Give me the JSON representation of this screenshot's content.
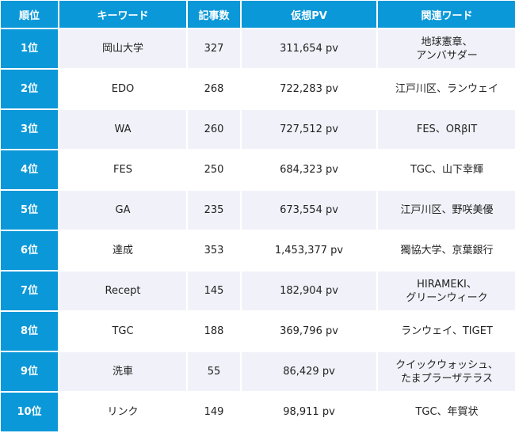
{
  "header": {
    "rank": "順位",
    "keyword": "キーワード",
    "count": "記事数",
    "pv": "仮想PV",
    "related": "関連ワード"
  },
  "colors": {
    "accent": "#0b98d8",
    "row_alt": "#f1f2f9"
  },
  "rows": [
    {
      "rank": "1位",
      "keyword": "岡山大学",
      "count": "327",
      "pv": "311,654 pv",
      "related": "地球憲章、\nアンバサダー"
    },
    {
      "rank": "2位",
      "keyword": "EDO",
      "count": "268",
      "pv": "722,283 pv",
      "related": "江戸川区、ランウェイ"
    },
    {
      "rank": "3位",
      "keyword": "WA",
      "count": "260",
      "pv": "727,512 pv",
      "related": "FES、ORβIT"
    },
    {
      "rank": "4位",
      "keyword": "FES",
      "count": "250",
      "pv": "684,323 pv",
      "related": "TGC、山下幸輝"
    },
    {
      "rank": "5位",
      "keyword": "GA",
      "count": "235",
      "pv": "673,554 pv",
      "related": "江戸川区、野咲美優"
    },
    {
      "rank": "6位",
      "keyword": "達成",
      "count": "353",
      "pv": "1,453,377 pv",
      "related": "獨協大学、京葉銀行"
    },
    {
      "rank": "7位",
      "keyword": "Recept",
      "count": "145",
      "pv": "182,904 pv",
      "related": "HIRAMEKI、\nグリーンウィーク"
    },
    {
      "rank": "8位",
      "keyword": "TGC",
      "count": "188",
      "pv": "369,796 pv",
      "related": "ランウェイ、TIGET"
    },
    {
      "rank": "9位",
      "keyword": "洗車",
      "count": "55",
      "pv": "86,429 pv",
      "related": "クイックウォッシュ、\nたまプラーザテラス"
    },
    {
      "rank": "10位",
      "keyword": "リンク",
      "count": "149",
      "pv": "98,911 pv",
      "related": "TGC、年賀状"
    }
  ]
}
